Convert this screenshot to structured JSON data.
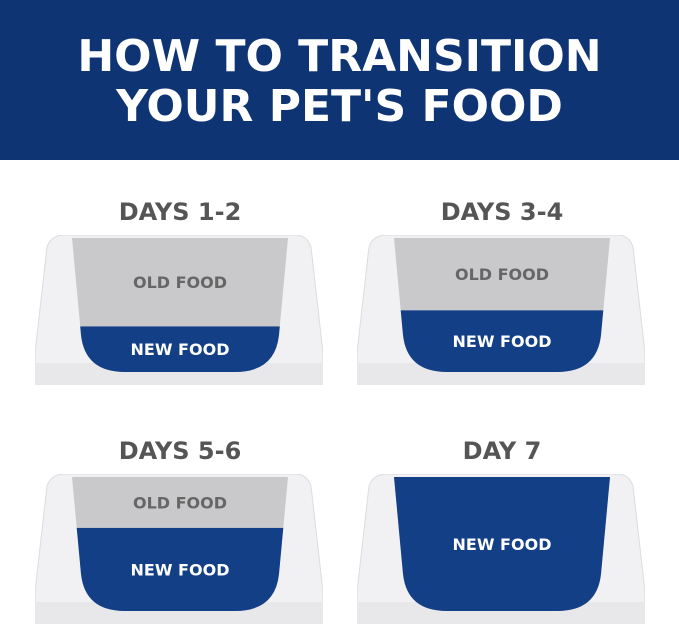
{
  "header": {
    "line1": "HOW TO TRANSITION",
    "line2": "YOUR PET'S FOOD"
  },
  "colors": {
    "banner": "#0e3474",
    "new_food": "#123f85",
    "old_food": "#c9c9cb",
    "bowl": "#f1f1f3",
    "title_text": "#555555"
  },
  "stages": [
    {
      "title": "DAYS 1-2",
      "old_label": "OLD FOOD",
      "new_label": "NEW FOOD",
      "new_food_level": 0.34
    },
    {
      "title": "DAYS 3-4",
      "old_label": "OLD FOOD",
      "new_label": "NEW FOOD",
      "new_food_level": 0.46
    },
    {
      "title": "DAYS 5-6",
      "old_label": "OLD FOOD",
      "new_label": "NEW FOOD",
      "new_food_level": 0.62
    },
    {
      "title": "DAY 7",
      "old_label": "",
      "new_label": "NEW FOOD",
      "new_food_level": 1.0
    }
  ]
}
